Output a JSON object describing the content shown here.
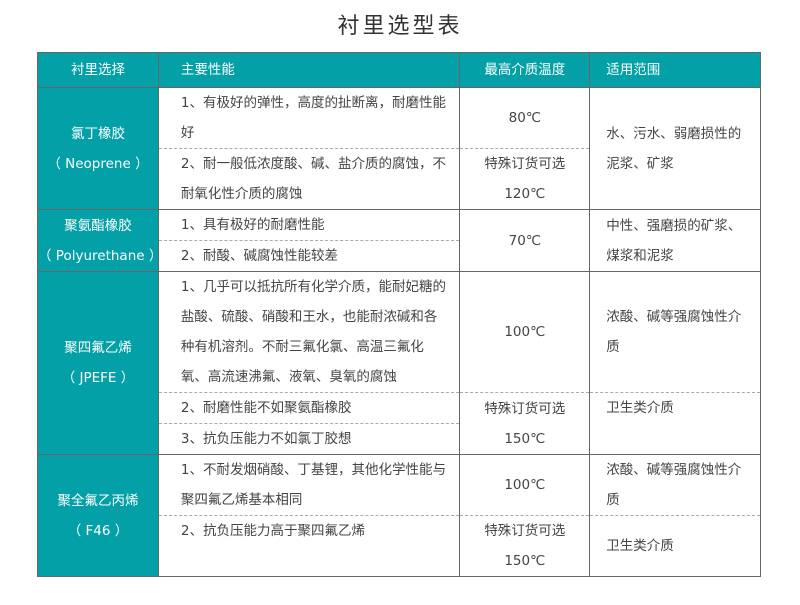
{
  "title": "衬里选型表",
  "headers": [
    "衬里选择",
    "主要性能",
    "最高介质温度",
    "适用范围"
  ],
  "rows": [
    {
      "name": "氯丁橡胶",
      "en": "（ Neoprene ）",
      "perf": [
        "1、有极好的弹性，高度的扯断离，耐磨性能好",
        "2、耐一般低浓度酸、碱、盐介质的腐蚀，不耐氧化性介质的腐蚀"
      ],
      "temp": [
        "80℃",
        "特殊订货可选",
        "120℃"
      ],
      "range": [
        "水、污水、弱磨损性的泥浆、矿浆"
      ]
    },
    {
      "name": "聚氨酯橡胶",
      "en": "（ Polyurethane ）",
      "perf": [
        "1、具有极好的耐磨性能",
        "2、耐酸、碱腐蚀性能较差"
      ],
      "temp": [
        "70℃"
      ],
      "range": [
        "中性、强磨损的矿浆、煤浆和泥浆"
      ]
    },
    {
      "name": "聚四氟乙烯",
      "en": "（ JPEFE ）",
      "perf": [
        "1、几乎可以抵抗所有化学介质，能耐妃糖的盐酸、硫酸、硝酸和王水，也能耐浓碱和各种有机溶剂。不耐三氟化氯、高温三氟化氧、高流速沸氟、液氧、臭氧的腐蚀",
        "2、耐磨性能不如聚氨酯橡胶",
        "3、抗负压能力不如氯丁胶想"
      ],
      "temp": [
        "100℃",
        "特殊订货可选",
        "150℃"
      ],
      "range": [
        "浓酸、碱等强腐蚀性介质",
        "卫生类介质"
      ]
    },
    {
      "name": "聚全氟乙丙烯",
      "en": "（ F46 ）",
      "perf": [
        "1、不耐发烟硝酸、丁基锂，其他化学性能与聚四氟乙烯基本相同",
        "2、抗负压能力高于聚四氟乙烯"
      ],
      "temp": [
        "100℃",
        "特殊订货可选",
        "150℃"
      ],
      "range": [
        "浓酸、碱等强腐蚀性介质",
        "卫生类介质"
      ]
    }
  ],
  "colors": {
    "header": "#03a0a8",
    "text": "#444444"
  }
}
